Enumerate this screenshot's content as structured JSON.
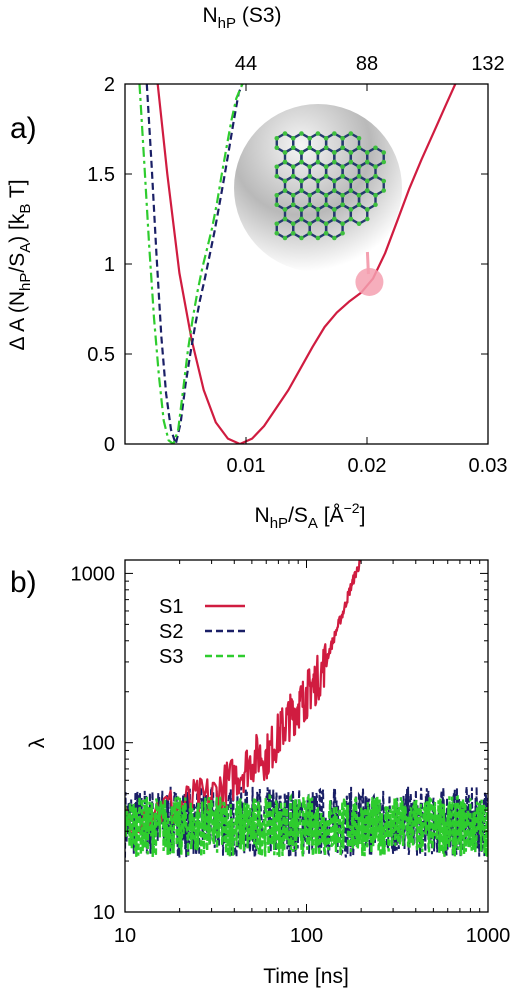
{
  "colors": {
    "S1": "#d01c40",
    "S2": "#1a1f66",
    "S3": "#2ecc2e",
    "marker": "#f4a0b0"
  },
  "chart_data": [
    {
      "type": "line",
      "panel_label": "a)",
      "xlabel_base": "N",
      "xlabel_sub": "hP",
      "xlabel_mid": "/S",
      "xlabel_sub2": "A",
      "xlabel_units_open": " [Å",
      "xlabel_units_sup": "−2",
      "xlabel_units_close": "]",
      "ylabel_pre": "Δ A (N",
      "ylabel_sub1": "hP",
      "ylabel_mid": "/S",
      "ylabel_sub2": "A",
      "ylabel_post": ") [k",
      "ylabel_sub3": "B",
      "ylabel_end": " T]",
      "top_xlabel_base": "N",
      "top_xlabel_sub": "hP",
      "top_xlabel_post": " (S3)",
      "xlim": [
        0.0,
        0.03
      ],
      "ylim": [
        0,
        2
      ],
      "xticks": [
        0.01,
        0.02,
        0.03
      ],
      "xtick_labels": [
        "0.01",
        "0.02",
        "0.03"
      ],
      "yticks": [
        0,
        0.5,
        1,
        1.5,
        2
      ],
      "ytick_labels": [
        "0",
        "0.5",
        "1",
        "1.5",
        "2"
      ],
      "top_xticks": [
        0.01,
        0.02,
        0.03
      ],
      "top_xtick_labels": [
        "44",
        "88",
        "132"
      ],
      "series": [
        {
          "key": "S1",
          "style": "solid",
          "x": [
            0.0027,
            0.0035,
            0.0045,
            0.0055,
            0.0065,
            0.0075,
            0.0085,
            0.0095,
            0.0105,
            0.0115,
            0.0125,
            0.0135,
            0.0145,
            0.0155,
            0.0165,
            0.0175,
            0.0185,
            0.0195,
            0.0205,
            0.0215,
            0.0225,
            0.0235,
            0.0245,
            0.0255,
            0.0265,
            0.0273
          ],
          "y": [
            2.0,
            1.5,
            0.95,
            0.58,
            0.3,
            0.12,
            0.03,
            0.0,
            0.03,
            0.1,
            0.2,
            0.3,
            0.42,
            0.54,
            0.65,
            0.73,
            0.79,
            0.84,
            0.92,
            1.06,
            1.24,
            1.42,
            1.58,
            1.73,
            1.88,
            2.0
          ]
        },
        {
          "key": "S2",
          "style": "dashed",
          "x": [
            0.0018,
            0.0022,
            0.0026,
            0.003,
            0.0034,
            0.0038,
            0.0042,
            0.0046,
            0.005,
            0.0054,
            0.0058,
            0.0062,
            0.0066,
            0.007,
            0.0074,
            0.0078,
            0.0082,
            0.0086,
            0.009,
            0.0094,
            0.0097
          ],
          "y": [
            2.0,
            1.55,
            1.05,
            0.6,
            0.28,
            0.08,
            0.0,
            0.12,
            0.33,
            0.5,
            0.66,
            0.8,
            0.92,
            1.05,
            1.18,
            1.33,
            1.48,
            1.64,
            1.8,
            1.95,
            2.0
          ]
        },
        {
          "key": "S3",
          "style": "dashdot",
          "x": [
            0.0012,
            0.0016,
            0.002,
            0.0024,
            0.0028,
            0.0032,
            0.0036,
            0.004,
            0.0044,
            0.0048,
            0.0052,
            0.0056,
            0.006,
            0.0064,
            0.0068,
            0.0072,
            0.0076,
            0.008,
            0.0084,
            0.0088,
            0.0092,
            0.0097
          ],
          "y": [
            2.0,
            1.55,
            1.1,
            0.7,
            0.38,
            0.13,
            0.02,
            0.0,
            0.08,
            0.3,
            0.52,
            0.7,
            0.85,
            0.98,
            1.09,
            1.2,
            1.34,
            1.5,
            1.65,
            1.8,
            1.92,
            2.0
          ]
        }
      ],
      "marker": {
        "x": 0.0202,
        "y": 0.9
      }
    },
    {
      "type": "line",
      "panel_label": "b)",
      "xlabel": "Time [ns]",
      "ylabel": "λ",
      "xscale": "log",
      "yscale": "log",
      "xlim": [
        10,
        1000
      ],
      "ylim": [
        10,
        1200
      ],
      "xticks": [
        10,
        100,
        1000
      ],
      "xtick_labels": [
        "10",
        "100",
        "1000"
      ],
      "yticks": [
        10,
        100,
        1000
      ],
      "ytick_labels": [
        "10",
        "100",
        "1000"
      ],
      "legend_position": "top-left",
      "series": [
        {
          "key": "S1",
          "name": "S1",
          "style": "solid",
          "x": [
            10,
            15,
            20,
            25,
            30,
            35,
            40,
            45,
            50,
            55,
            60,
            65,
            70,
            75,
            80,
            85,
            90,
            95,
            100,
            105,
            110,
            120,
            130,
            140,
            150,
            160,
            170,
            180,
            190,
            200
          ],
          "y": [
            38,
            40,
            42,
            45,
            48,
            55,
            62,
            70,
            78,
            85,
            82,
            95,
            110,
            125,
            140,
            150,
            165,
            175,
            190,
            210,
            220,
            260,
            320,
            400,
            500,
            600,
            750,
            900,
            1050,
            1200
          ]
        },
        {
          "key": "S2",
          "name": "S2",
          "style": "dashed",
          "x": [
            10,
            1000
          ],
          "y": [
            34,
            34
          ]
        },
        {
          "key": "S3",
          "name": "S3",
          "style": "dashed",
          "x": [
            10,
            1000
          ],
          "y": [
            32,
            32
          ]
        }
      ]
    }
  ]
}
